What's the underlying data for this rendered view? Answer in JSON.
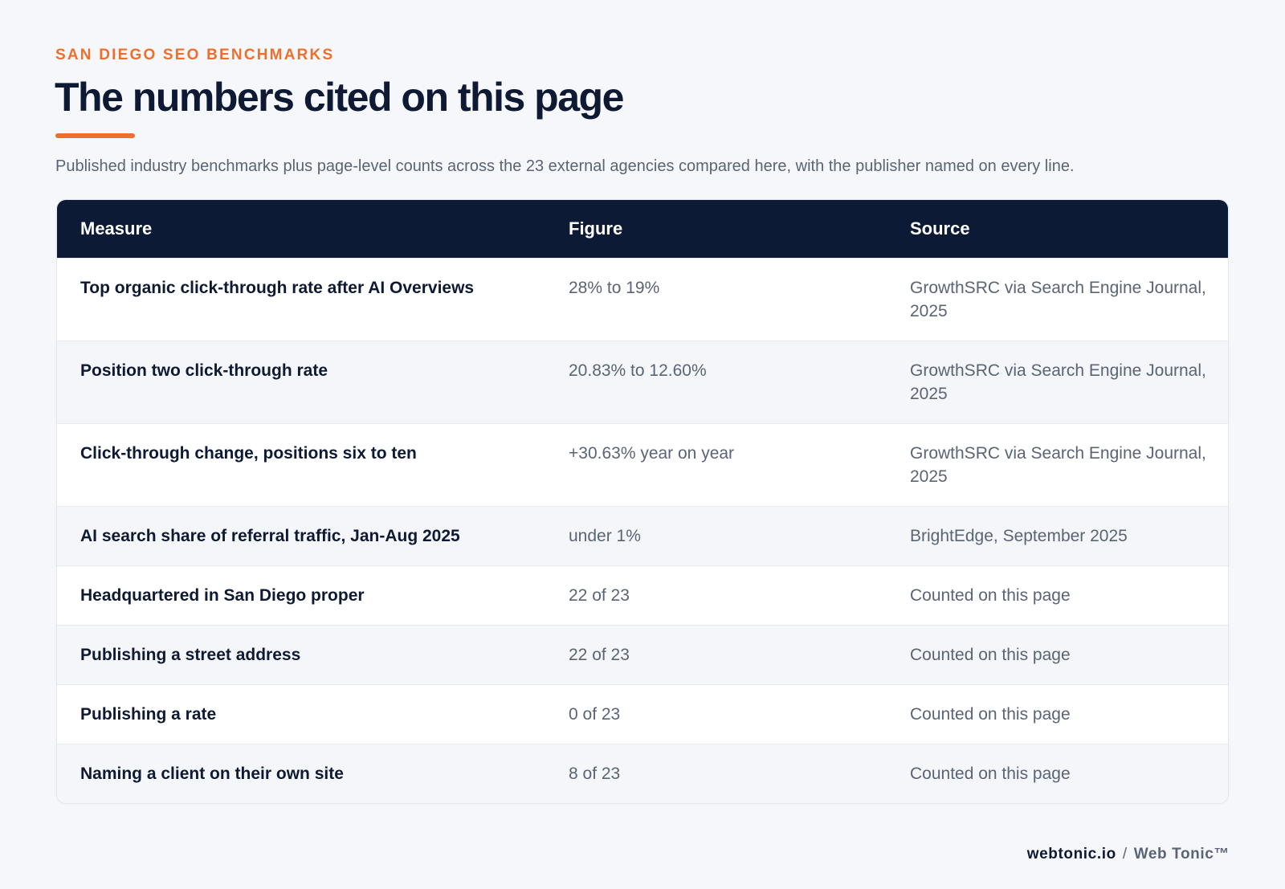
{
  "header": {
    "eyebrow": "SAN DIEGO SEO BENCHMARKS",
    "title": "The numbers cited on this page",
    "subtitle": "Published industry benchmarks plus page-level counts across the 23 external agencies compared here, with the publisher named on every line."
  },
  "table": {
    "columns": [
      "Measure",
      "Figure",
      "Source"
    ],
    "rows": [
      {
        "measure": "Top organic click-through rate after AI Overviews",
        "figure": "28% to 19%",
        "source": "GrowthSRC via Search Engine Journal, 2025"
      },
      {
        "measure": "Position two click-through rate",
        "figure": "20.83% to 12.60%",
        "source": "GrowthSRC via Search Engine Journal, 2025"
      },
      {
        "measure": "Click-through change, positions six to ten",
        "figure": "+30.63% year on year",
        "source": "GrowthSRC via Search Engine Journal, 2025"
      },
      {
        "measure": "AI search share of referral traffic, Jan-Aug 2025",
        "figure": "under 1%",
        "source": "BrightEdge, September 2025"
      },
      {
        "measure": "Headquartered in San Diego proper",
        "figure": "22 of 23",
        "source": "Counted on this page"
      },
      {
        "measure": "Publishing a street address",
        "figure": "22 of 23",
        "source": "Counted on this page"
      },
      {
        "measure": "Publishing a rate",
        "figure": "0 of 23",
        "source": "Counted on this page"
      },
      {
        "measure": "Naming a client on their own site",
        "figure": "8 of 23",
        "source": "Counted on this page"
      }
    ]
  },
  "footer": {
    "domain": "webtonic.io",
    "separator": "/",
    "brand": "Web Tonic™"
  },
  "colors": {
    "accent": "#ee6f2d",
    "navy": "#0c1a35",
    "muted_text": "#5a6475",
    "background": "#f5f7fa"
  }
}
